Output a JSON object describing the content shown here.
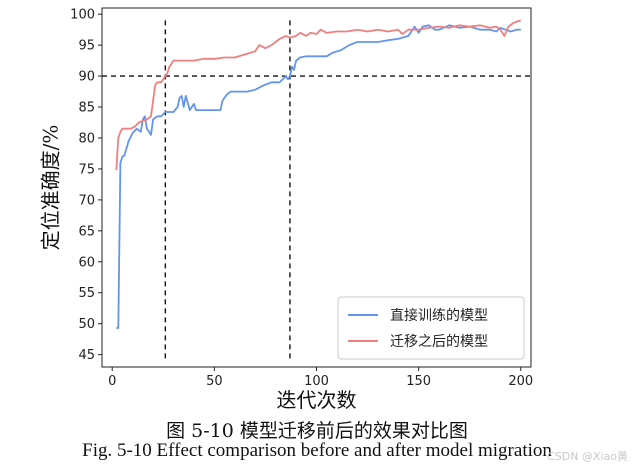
{
  "chart_data": {
    "type": "line",
    "xlabel": "迭代次数",
    "ylabel": "定位准确度/%",
    "xlim": [
      -5,
      205
    ],
    "ylim": [
      43,
      101
    ],
    "xticks": [
      0,
      50,
      100,
      150,
      200
    ],
    "yticks": [
      45,
      50,
      55,
      60,
      65,
      70,
      75,
      80,
      85,
      90,
      95,
      100
    ],
    "legend_position": "lower-right",
    "series": [
      {
        "name": "直接训练的模型",
        "color": "#6495ed",
        "points": [
          [
            2,
            49.3
          ],
          [
            3,
            49.3
          ],
          [
            4,
            76
          ],
          [
            5,
            77
          ],
          [
            6,
            77.2
          ],
          [
            8,
            79.5
          ],
          [
            10,
            80.8
          ],
          [
            12,
            81.5
          ],
          [
            14,
            81
          ],
          [
            15,
            83
          ],
          [
            16,
            83.5
          ],
          [
            17,
            81.5
          ],
          [
            18,
            81
          ],
          [
            19,
            80.5
          ],
          [
            20,
            83
          ],
          [
            22,
            83.5
          ],
          [
            24,
            83.5
          ],
          [
            26,
            84.2
          ],
          [
            28,
            84.2
          ],
          [
            30,
            84.2
          ],
          [
            32,
            85
          ],
          [
            33,
            86.5
          ],
          [
            34,
            86.8
          ],
          [
            35,
            85
          ],
          [
            36,
            86.8
          ],
          [
            38,
            84.5
          ],
          [
            40,
            85.5
          ],
          [
            41,
            84.5
          ],
          [
            43,
            84.5
          ],
          [
            46,
            84.5
          ],
          [
            50,
            84.5
          ],
          [
            53,
            84.5
          ],
          [
            54,
            86
          ],
          [
            56,
            87
          ],
          [
            58,
            87.5
          ],
          [
            62,
            87.5
          ],
          [
            66,
            87.5
          ],
          [
            70,
            87.8
          ],
          [
            74,
            88.5
          ],
          [
            78,
            89
          ],
          [
            82,
            89
          ],
          [
            85,
            90
          ],
          [
            86,
            89.5
          ],
          [
            87,
            90
          ],
          [
            88,
            91.5
          ],
          [
            89,
            91
          ],
          [
            90,
            92.5
          ],
          [
            92,
            93
          ],
          [
            95,
            93.2
          ],
          [
            100,
            93.2
          ],
          [
            105,
            93.2
          ],
          [
            108,
            93.8
          ],
          [
            112,
            94.2
          ],
          [
            116,
            95
          ],
          [
            120,
            95.5
          ],
          [
            124,
            95.5
          ],
          [
            130,
            95.5
          ],
          [
            135,
            95.8
          ],
          [
            140,
            96
          ],
          [
            145,
            96.5
          ],
          [
            148,
            98
          ],
          [
            150,
            97
          ],
          [
            152,
            98
          ],
          [
            155,
            98.2
          ],
          [
            158,
            97.5
          ],
          [
            160,
            97.5
          ],
          [
            165,
            98.2
          ],
          [
            170,
            97.8
          ],
          [
            175,
            98
          ],
          [
            180,
            97.5
          ],
          [
            185,
            97.5
          ],
          [
            188,
            97.2
          ],
          [
            190,
            97.8
          ],
          [
            195,
            97.2
          ],
          [
            198,
            97.5
          ],
          [
            200,
            97.5
          ]
        ]
      },
      {
        "name": "迁移之后的模型",
        "color": "#f08080",
        "points": [
          [
            2,
            74.8
          ],
          [
            3,
            80
          ],
          [
            4,
            81
          ],
          [
            5,
            81.5
          ],
          [
            7,
            81.5
          ],
          [
            9,
            81.5
          ],
          [
            11,
            81.8
          ],
          [
            13,
            82.5
          ],
          [
            15,
            82.8
          ],
          [
            17,
            83
          ],
          [
            19,
            83.5
          ],
          [
            20,
            86
          ],
          [
            21,
            88.5
          ],
          [
            22,
            89
          ],
          [
            24,
            89
          ],
          [
            25,
            89.5
          ],
          [
            26,
            90
          ],
          [
            27,
            90.5
          ],
          [
            28,
            91.5
          ],
          [
            29,
            92
          ],
          [
            30,
            92.5
          ],
          [
            35,
            92.5
          ],
          [
            40,
            92.5
          ],
          [
            45,
            92.8
          ],
          [
            50,
            92.8
          ],
          [
            55,
            93
          ],
          [
            60,
            93
          ],
          [
            65,
            93.5
          ],
          [
            70,
            94
          ],
          [
            72,
            95
          ],
          [
            75,
            94.5
          ],
          [
            78,
            95
          ],
          [
            80,
            95.5
          ],
          [
            82,
            96
          ],
          [
            85,
            96.5
          ],
          [
            87,
            96.2
          ],
          [
            90,
            96.5
          ],
          [
            92,
            97
          ],
          [
            95,
            96.5
          ],
          [
            97,
            97
          ],
          [
            100,
            96.8
          ],
          [
            102,
            97.5
          ],
          [
            105,
            97
          ],
          [
            110,
            97.2
          ],
          [
            115,
            97.2
          ],
          [
            120,
            97.5
          ],
          [
            125,
            97.2
          ],
          [
            130,
            97.5
          ],
          [
            135,
            97.2
          ],
          [
            140,
            97.5
          ],
          [
            142,
            96.8
          ],
          [
            145,
            97.5
          ],
          [
            150,
            97.5
          ],
          [
            155,
            97.8
          ],
          [
            160,
            98
          ],
          [
            165,
            97.8
          ],
          [
            170,
            98.2
          ],
          [
            175,
            98
          ],
          [
            180,
            98.2
          ],
          [
            185,
            97.8
          ],
          [
            188,
            98
          ],
          [
            190,
            97.5
          ],
          [
            192,
            96.5
          ],
          [
            194,
            98
          ],
          [
            196,
            98.5
          ],
          [
            198,
            98.8
          ],
          [
            200,
            99
          ]
        ]
      }
    ],
    "reference_lines": {
      "horizontal": [
        90
      ],
      "vertical": [
        26,
        87
      ]
    }
  },
  "caption": {
    "cn": "图 5-10 模型迁移前后的效果对比图",
    "en": "Fig. 5-10 Effect comparison before and after model migration"
  },
  "watermark": "CSDN @Xiao黄"
}
